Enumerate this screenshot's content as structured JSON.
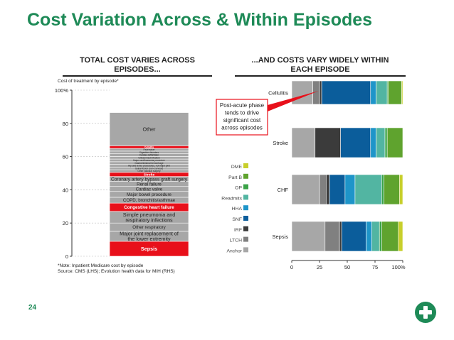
{
  "slide": {
    "title": "Cost Variation Across & Within Episodes",
    "page_number": "24"
  },
  "left_panel": {
    "title_line1": "TOTAL COST VARIES ACROSS",
    "title_line2": "EPISODES...",
    "axis_caption": "Cost of treatment by episode*",
    "footnote_line1": "*Note: Inpatient Medicare cost by episode",
    "footnote_line2": "Source: CMS (LHS); Evolution health data for MIH (RHS)"
  },
  "right_panel": {
    "title_line1": "...AND COSTS VARY WIDELY WITHIN",
    "title_line2": "EACH EPISODE",
    "callout": [
      "Post-acute phase",
      "tends to drive",
      "significant cost",
      "across episodes"
    ],
    "partial_label": "Readmit"
  },
  "colors": {
    "title_green": "#1e8a57",
    "highlight_red": "#e8101a",
    "segment_grey": "#a7a7a7"
  },
  "chart_data": [
    {
      "type": "bar",
      "stacked": true,
      "orientation": "vertical",
      "ylim": [
        0,
        100
      ],
      "yticks": [
        "0",
        "20",
        "40",
        "60",
        "80",
        "100%"
      ],
      "segments": [
        {
          "label": "Sepsis",
          "value": 9,
          "highlight": true
        },
        {
          "label": "Major joint replacement of the lower extremity",
          "value": 6
        },
        {
          "label": "Other respiratory",
          "value": 5
        },
        {
          "label": "Simple pneumonia and respiratory infections",
          "value": 7
        },
        {
          "label": "Congestive heart failure",
          "value": 5,
          "highlight": true
        },
        {
          "label": "COPD, bronchitis/asthmae",
          "value": 3.5
        },
        {
          "label": "Major bowel procedure",
          "value": 3.5
        },
        {
          "label": "Cardiac valve",
          "value": 3
        },
        {
          "label": "Renal failure",
          "value": 3
        },
        {
          "label": "Coronary artery bypass graft surgery",
          "value": 3
        },
        {
          "label": "Stroke",
          "value": 2.5,
          "highlight": true
        },
        {
          "label": "Other vascular surgery",
          "value": 1.6
        },
        {
          "label": "Spinal fusion (non-Cervical)",
          "value": 1.6
        },
        {
          "label": "Hip and femur procedures, not major joint",
          "value": 1.6
        },
        {
          "label": "Gastrointestinal hemorrhage",
          "value": 1.6
        },
        {
          "label": "Major cardiovascular procedure",
          "value": 1.6
        },
        {
          "label": "Urinary tract infection",
          "value": 1.6
        },
        {
          "label": "Cardiac defibrillator",
          "value": 1.6
        },
        {
          "label": "Digestive disorders",
          "value": 1.6
        },
        {
          "label": "Pacemaker",
          "value": 1.6
        },
        {
          "label": "Cellulitis",
          "value": 1.6,
          "highlight": true
        },
        {
          "label": "Other",
          "value": 20
        }
      ]
    },
    {
      "type": "bar",
      "stacked": true,
      "orientation": "horizontal",
      "xlim": [
        0,
        100
      ],
      "xticks": [
        "0",
        "25",
        "50",
        "75",
        "100%"
      ],
      "categories": [
        "Cellulitis",
        "Stroke",
        "CHF",
        "Sepsis"
      ],
      "legend": [
        "DME",
        "Part B",
        "OP",
        "Readmits",
        "HHA",
        "SNF",
        "IRF",
        "LTCH",
        "Anchor"
      ],
      "legend_placement": "left",
      "series": [
        {
          "name": "Anchor",
          "color": "#a7a7a7",
          "values": [
            19,
            21,
            25,
            30
          ]
        },
        {
          "name": "LTCH",
          "color": "#808080",
          "values": [
            6,
            0,
            6,
            13
          ]
        },
        {
          "name": "IRF",
          "color": "#3b3b3b",
          "values": [
            2,
            23,
            3,
            2
          ]
        },
        {
          "name": "SNF",
          "color": "#0b5d9b",
          "values": [
            44,
            27,
            14,
            22
          ]
        },
        {
          "name": "HHA",
          "color": "#1e95c9",
          "values": [
            5,
            5,
            9,
            5
          ]
        },
        {
          "name": "Readmits",
          "color": "#52b5a2",
          "values": [
            10,
            8,
            24,
            7
          ]
        },
        {
          "name": "OP",
          "color": "#3aa347",
          "values": [
            1,
            2,
            2,
            2
          ]
        },
        {
          "name": "Part B",
          "color": "#5fa32e",
          "values": [
            12,
            14,
            14,
            15
          ]
        },
        {
          "name": "DME",
          "color": "#c8cf2c",
          "values": [
            1,
            0,
            3,
            4
          ]
        }
      ]
    }
  ]
}
